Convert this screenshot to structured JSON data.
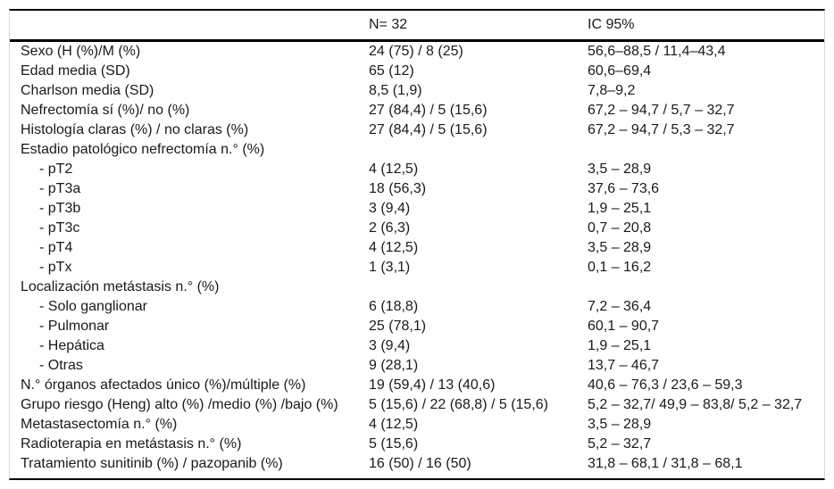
{
  "table": {
    "header": {
      "col_label": "",
      "col_n": "N= 32",
      "col_ic": "IC 95%"
    },
    "rows": [
      {
        "label": "Sexo (H (%)/M (%)",
        "n": "24 (75) / 8 (25)",
        "ic": "56,6–88,5 / 11,4–43,4",
        "indent": false
      },
      {
        "label": "Edad media (SD)",
        "n": "65 (12)",
        "ic": "60,6–69,4",
        "indent": false
      },
      {
        "label": "Charlson media (SD)",
        "n": "8,5 (1,9)",
        "ic": "7,8–9,2",
        "indent": false
      },
      {
        "label": "Nefrectomía sí (%)/ no (%)",
        "n": "27 (84,4) / 5 (15,6)",
        "ic": "67,2 – 94,7 / 5,7 – 32,7",
        "indent": false
      },
      {
        "label": "Histología claras (%) / no claras (%)",
        "n": "27 (84,4) / 5 (15,6)",
        "ic": "67,2 – 94,7 / 5,3 – 32,7",
        "indent": false
      },
      {
        "label": "Estadio patológico nefrectomía n.° (%)",
        "n": "",
        "ic": "",
        "indent": false
      },
      {
        "label": "- pT2",
        "n": "4 (12,5)",
        "ic": "3,5 – 28,9",
        "indent": true
      },
      {
        "label": "- pT3a",
        "n": "18 (56,3)",
        "ic": "37,6 – 73,6",
        "indent": true
      },
      {
        "label": "- pT3b",
        "n": "3 (9,4)",
        "ic": "1,9 – 25,1",
        "indent": true
      },
      {
        "label": "- pT3c",
        "n": "2 (6,3)",
        "ic": "0,7 – 20,8",
        "indent": true
      },
      {
        "label": "- pT4",
        "n": "4 (12,5)",
        "ic": "3,5 – 28,9",
        "indent": true
      },
      {
        "label": "- pTx",
        "n": "1 (3,1)",
        "ic": "0,1 – 16,2",
        "indent": true
      },
      {
        "label": "Localización metástasis n.° (%)",
        "n": "",
        "ic": "",
        "indent": false
      },
      {
        "label": "- Solo ganglionar",
        "n": "6 (18,8)",
        "ic": "7,2 – 36,4",
        "indent": true
      },
      {
        "label": "- Pulmonar",
        "n": "25 (78,1)",
        "ic": "60,1 – 90,7",
        "indent": true
      },
      {
        "label": "- Hepática",
        "n": "3 (9,4)",
        "ic": "1,9 – 25,1",
        "indent": true
      },
      {
        "label": "- Otras",
        "n": "9 (28,1)",
        "ic": "13,7 – 46,7",
        "indent": true
      },
      {
        "label": "N.° órganos afectados único (%)/múltiple (%)",
        "n": "19 (59,4) / 13 (40,6)",
        "ic": "40,6 – 76,3 / 23,6 – 59,3",
        "indent": false
      },
      {
        "label": "Grupo riesgo (Heng) alto (%) /medio (%) /bajo (%)",
        "n": "5 (15,6) / 22 (68,8) / 5 (15,6)",
        "ic": "5,2 – 32,7/ 49,9 – 83,8/ 5,2 – 32,7",
        "indent": false
      },
      {
        "label": "Metastasectomía n.° (%)",
        "n": "4 (12,5)",
        "ic": "3,5 – 28,9",
        "indent": false
      },
      {
        "label": "Radioterapia en metástasis n.° (%)",
        "n": "5 (15,6)",
        "ic": "5,2 – 32,7",
        "indent": false
      },
      {
        "label": "Tratamiento sunitinib (%) / pazopanib (%)",
        "n": "16 (50) / 16 (50)",
        "ic": "31,8 – 68,1 / 31,8 – 68,1",
        "indent": false
      }
    ]
  },
  "colors": {
    "rule": "#000000",
    "edge_rule": "#d9d9d9",
    "text": "#1a1a1a",
    "background": "#ffffff"
  }
}
